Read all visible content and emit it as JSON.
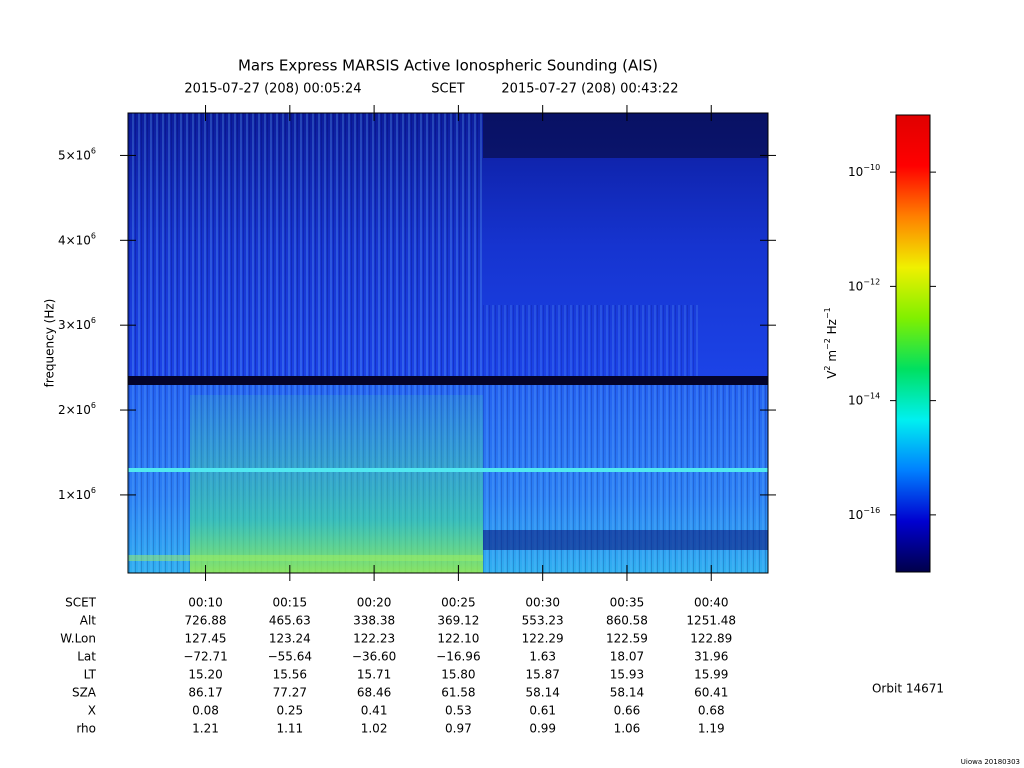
{
  "chart_data": {
    "type": "spectrogram",
    "title": "Mars Express MARSIS Active Ionospheric Sounding (AIS)",
    "subtitle_start": "2015-07-27 (208) 00:05:24",
    "subtitle_middle": "SCET",
    "subtitle_end": "2015-07-27 (208) 00:43:22",
    "y_label": "frequency (Hz)",
    "xlim": [
      5.4,
      43.367
    ],
    "xticks": [
      {
        "value": 10,
        "label": "00:10"
      },
      {
        "value": 15,
        "label": "00:15"
      },
      {
        "value": 20,
        "label": "00:20"
      },
      {
        "value": 25,
        "label": "00:25"
      },
      {
        "value": 30,
        "label": "00:30"
      },
      {
        "value": 35,
        "label": "00:35"
      },
      {
        "value": 40,
        "label": "00:40"
      }
    ],
    "ylim": [
      80000,
      5500000
    ],
    "yticks": [
      {
        "value": 1000000,
        "label": "1×10",
        "exponent": "6"
      },
      {
        "value": 2000000,
        "label": "2×10",
        "exponent": "6"
      },
      {
        "value": 3000000,
        "label": "3×10",
        "exponent": "6"
      },
      {
        "value": 4000000,
        "label": "4×10",
        "exponent": "6"
      },
      {
        "value": 5000000,
        "label": "5×10",
        "exponent": "6"
      }
    ],
    "colorbar": {
      "log_scale": true,
      "clim": [
        1e-17,
        1e-09
      ],
      "colors": [
        "#00004a",
        "#0000d0",
        "#0080ff",
        "#00f0f0",
        "#00e060",
        "#80f000",
        "#f0f000",
        "#ff8000",
        "#ff0000",
        "#e00000"
      ],
      "ticks": [
        {
          "value": 1e-10,
          "label": "10",
          "exponent": "−10"
        },
        {
          "value": 1e-12,
          "label": "10",
          "exponent": "−12"
        },
        {
          "value": 1e-14,
          "label": "10",
          "exponent": "−14"
        },
        {
          "value": 1e-16,
          "label": "10",
          "exponent": "−16"
        }
      ],
      "label_parts": [
        {
          "text": "V"
        },
        {
          "text": "2",
          "sup": true
        },
        {
          "text": " m"
        },
        {
          "text": "−2",
          "sup": true
        },
        {
          "text": " Hz"
        },
        {
          "text": "−1",
          "sup": true
        }
      ]
    },
    "ephemeris": {
      "header": "SCET",
      "rows": [
        {
          "name": "Alt",
          "values": [
            "726.88",
            "465.63",
            "338.38",
            "369.12",
            "553.23",
            "860.58",
            "1251.48"
          ]
        },
        {
          "name": "W.Lon",
          "values": [
            "127.45",
            "123.24",
            "122.23",
            "122.10",
            "122.29",
            "122.59",
            "122.89"
          ]
        },
        {
          "name": "Lat",
          "values": [
            "−72.71",
            "−55.64",
            "−36.60",
            "−16.96",
            "1.63",
            "18.07",
            "31.96"
          ]
        },
        {
          "name": "LT",
          "values": [
            "15.20",
            "15.56",
            "15.71",
            "15.80",
            "15.87",
            "15.93",
            "15.99"
          ]
        },
        {
          "name": "SZA",
          "values": [
            "86.17",
            "77.27",
            "68.46",
            "61.58",
            "58.14",
            "58.14",
            "60.41"
          ]
        },
        {
          "name": "X",
          "values": [
            "0.08",
            "0.25",
            "0.41",
            "0.53",
            "0.61",
            "0.66",
            "0.68"
          ]
        },
        {
          "name": "rho",
          "values": [
            "1.21",
            "1.11",
            "1.02",
            "0.97",
            "0.99",
            "1.06",
            "1.19"
          ]
        }
      ]
    },
    "orbit": "Orbit 14671",
    "credit": "Uiowa 20180303"
  }
}
